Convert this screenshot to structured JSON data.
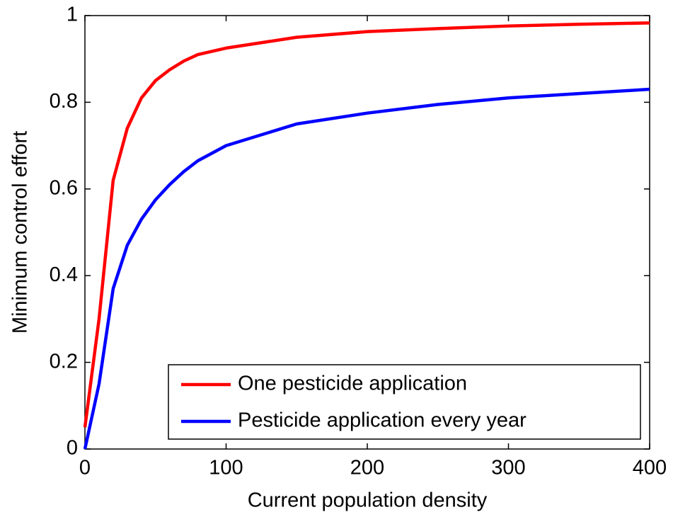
{
  "chart_data": {
    "type": "line",
    "xlabel": "Current population density",
    "ylabel": "Minimum control effort",
    "x": [
      0,
      10,
      20,
      30,
      40,
      50,
      60,
      70,
      80,
      100,
      150,
      200,
      250,
      300,
      350,
      400
    ],
    "series": [
      {
        "name": "One pesticide application",
        "color": "#ff0000",
        "values": [
          0.05,
          0.3,
          0.62,
          0.74,
          0.81,
          0.85,
          0.875,
          0.895,
          0.91,
          0.925,
          0.95,
          0.963,
          0.97,
          0.976,
          0.98,
          0.983
        ]
      },
      {
        "name": "Pesticide application every year",
        "color": "#0000ff",
        "values": [
          0.0,
          0.15,
          0.37,
          0.47,
          0.53,
          0.575,
          0.61,
          0.64,
          0.665,
          0.7,
          0.75,
          0.775,
          0.795,
          0.81,
          0.82,
          0.83
        ]
      }
    ],
    "xlim": [
      0,
      400
    ],
    "xticks": [
      0,
      100,
      200,
      300,
      400
    ],
    "ylim": [
      0,
      1
    ],
    "yticks": [
      0,
      0.2,
      0.4,
      0.6,
      0.8,
      1
    ],
    "grid": false,
    "legend": "lower right"
  }
}
